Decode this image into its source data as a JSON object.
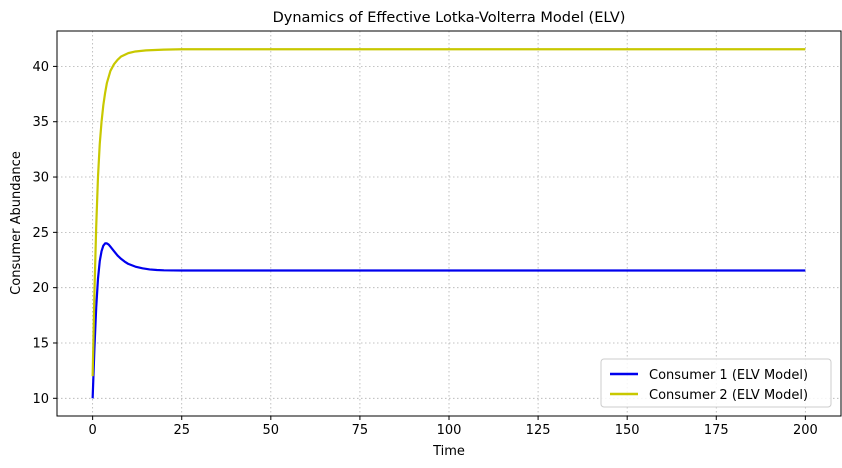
{
  "chart_data": {
    "type": "line",
    "title": "Dynamics of Effective Lotka-Volterra Model (ELV)",
    "xlabel": "Time",
    "ylabel": "Consumer Abundance",
    "xlim": [
      -10,
      210
    ],
    "ylim": [
      8.4,
      43.2
    ],
    "xticks": [
      0,
      25,
      50,
      75,
      100,
      125,
      150,
      175,
      200
    ],
    "yticks": [
      10,
      15,
      20,
      25,
      30,
      35,
      40
    ],
    "grid": true,
    "legend_position": "lower-right",
    "series": [
      {
        "name": "Consumer 1 (ELV Model)",
        "color": "#0000ee",
        "x": [
          0,
          0.5,
          1,
          1.5,
          2,
          2.5,
          3,
          3.5,
          4,
          4.5,
          5,
          6,
          7,
          8,
          9,
          10,
          12,
          14,
          16,
          18,
          20,
          25,
          30,
          40,
          60,
          100,
          150,
          200
        ],
        "y": [
          10.0,
          14.5,
          18.2,
          20.8,
          22.4,
          23.3,
          23.8,
          24.0,
          24.0,
          23.9,
          23.7,
          23.3,
          22.9,
          22.6,
          22.35,
          22.15,
          21.9,
          21.75,
          21.65,
          21.6,
          21.57,
          21.55,
          21.55,
          21.55,
          21.55,
          21.55,
          21.55,
          21.55
        ]
      },
      {
        "name": "Consumer 2 (ELV Model)",
        "color": "#c8c800",
        "x": [
          0,
          0.5,
          1,
          1.5,
          2,
          2.5,
          3,
          3.5,
          4,
          5,
          6,
          7,
          8,
          10,
          12,
          15,
          20,
          25,
          30,
          40,
          60,
          100,
          150,
          200
        ],
        "y": [
          12.0,
          19.5,
          25.5,
          30.0,
          33.0,
          35.0,
          36.5,
          37.6,
          38.5,
          39.6,
          40.2,
          40.6,
          40.9,
          41.2,
          41.35,
          41.45,
          41.52,
          41.55,
          41.55,
          41.55,
          41.55,
          41.55,
          41.55,
          41.55
        ]
      }
    ]
  }
}
